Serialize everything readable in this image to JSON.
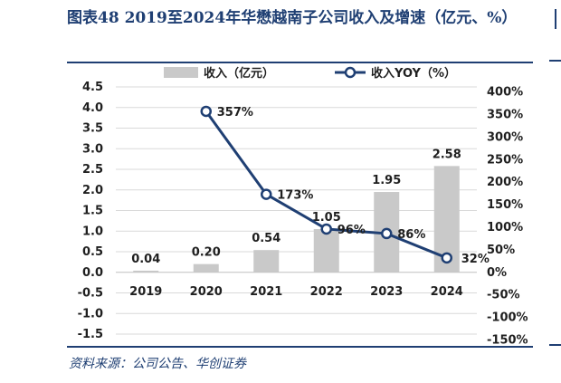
{
  "title": "图表48 2019至2024年华懋越南子公司收入及增速（亿元、%）",
  "source": "资料来源：公司公告、华创证券",
  "colors": {
    "title": "#1f3f73",
    "bar": "#c9c9c9",
    "line": "#1f3f73",
    "grid": "#d9d9d9",
    "text": "#1f1f1f"
  },
  "chart_data": {
    "type": "bar",
    "title": "图表48 2019至2024年华懋越南子公司收入及增速（亿元、%）",
    "categories": [
      "2019",
      "2020",
      "2021",
      "2022",
      "2023",
      "2024"
    ],
    "ylim": [
      -1.5,
      4.5
    ],
    "y_ticks": [
      "4.5",
      "4.0",
      "3.5",
      "3.0",
      "2.5",
      "2.0",
      "1.5",
      "1.0",
      "0.5",
      "0.0",
      "-0.5",
      "-1.0",
      "-1.5"
    ],
    "y2lim": [
      -150,
      400
    ],
    "y2_ticks": [
      "400%",
      "350%",
      "300%",
      "250%",
      "200%",
      "150%",
      "100%",
      "50%",
      "0%",
      "-50%",
      "-100%",
      "-150%"
    ],
    "grid": true,
    "legend": "top-center",
    "series": [
      {
        "name": "收入（亿元）",
        "type": "bar",
        "axis": "left",
        "values": [
          0.04,
          0.2,
          0.54,
          1.05,
          1.95,
          2.58
        ],
        "labels": [
          "0.04",
          "0.20",
          "0.54",
          "1.05",
          "1.95",
          "2.58"
        ]
      },
      {
        "name": "收入YOY（%）",
        "type": "line",
        "axis": "right",
        "values": [
          null,
          357,
          173,
          96,
          86,
          32
        ],
        "labels": [
          "",
          "357%",
          "173%",
          "96%",
          "86%",
          "32%"
        ]
      }
    ]
  }
}
